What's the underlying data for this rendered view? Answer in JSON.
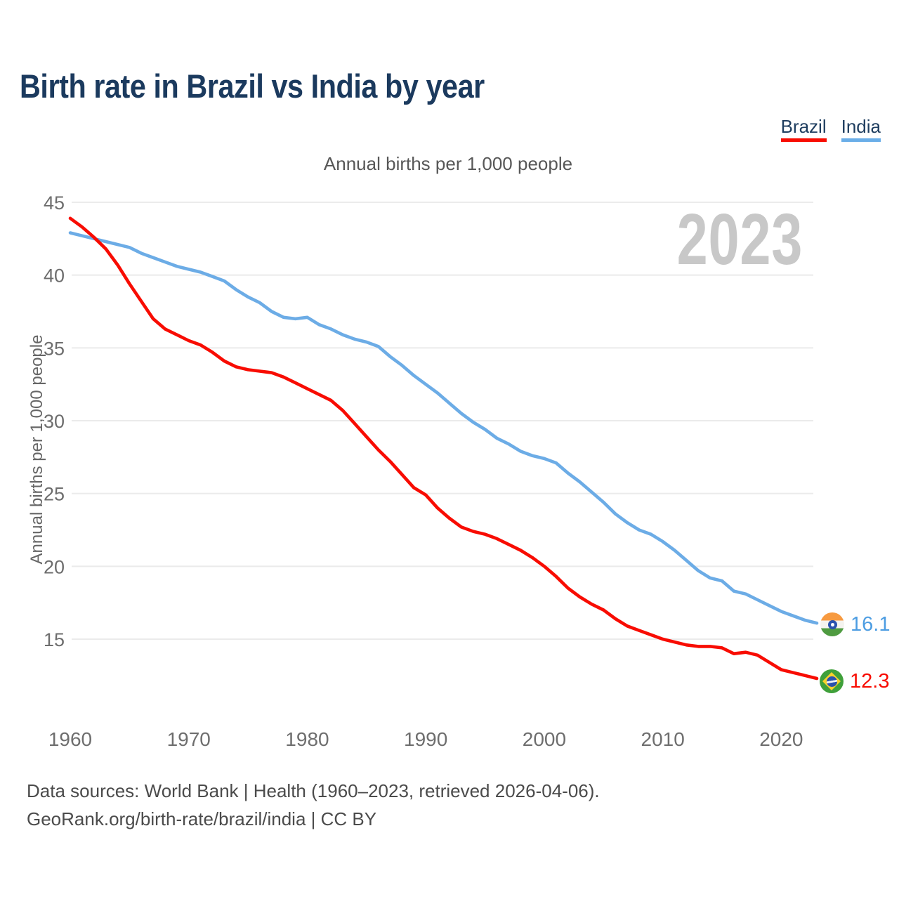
{
  "title": "Birth rate in Brazil vs India by year",
  "subtitle": "Annual births per 1,000 people",
  "y_axis_label": "Annual births per 1,000 people",
  "watermark": "2023",
  "legend": [
    {
      "label": "Brazil",
      "color": "#f80c02"
    },
    {
      "label": "India",
      "color": "#6aaee8"
    }
  ],
  "end_labels": {
    "india": {
      "value": "16.1",
      "color": "#4d9de2"
    },
    "brazil": {
      "value": "12.3",
      "color": "#f80c02"
    }
  },
  "footer": {
    "line1": "Data sources: World Bank | Health (1960–2023, retrieved 2026-04-06).",
    "line2": "GeoRank.org/birth-rate/brazil/india | CC BY"
  },
  "chart_data": {
    "type": "line",
    "title": "Birth rate in Brazil vs India by year",
    "subtitle": "Annual births per 1,000 people",
    "ylabel": "Annual births per 1,000 people",
    "ylim": [
      15,
      45
    ],
    "yticks": [
      15,
      20,
      25,
      30,
      35,
      40,
      45
    ],
    "xticks": [
      1960,
      1970,
      1980,
      1990,
      2000,
      2010,
      2020
    ],
    "grid": true,
    "legend_position": "top-right",
    "x": [
      1960,
      1961,
      1962,
      1963,
      1964,
      1965,
      1966,
      1967,
      1968,
      1969,
      1970,
      1971,
      1972,
      1973,
      1974,
      1975,
      1976,
      1977,
      1978,
      1979,
      1980,
      1981,
      1982,
      1983,
      1984,
      1985,
      1986,
      1987,
      1988,
      1989,
      1990,
      1991,
      1992,
      1993,
      1994,
      1995,
      1996,
      1997,
      1998,
      1999,
      2000,
      2001,
      2002,
      2003,
      2004,
      2005,
      2006,
      2007,
      2008,
      2009,
      2010,
      2011,
      2012,
      2013,
      2014,
      2015,
      2016,
      2017,
      2018,
      2019,
      2020,
      2021,
      2022,
      2023
    ],
    "series": [
      {
        "name": "Brazil",
        "color": "#f80c02",
        "values": [
          43.9,
          43.3,
          42.6,
          41.8,
          40.7,
          39.4,
          38.2,
          37.0,
          36.3,
          35.9,
          35.5,
          35.2,
          34.7,
          34.1,
          33.7,
          33.5,
          33.4,
          33.3,
          33.0,
          32.6,
          32.2,
          31.8,
          31.4,
          30.7,
          29.8,
          28.9,
          28.0,
          27.2,
          26.3,
          25.4,
          24.9,
          24.0,
          23.3,
          22.7,
          22.4,
          22.2,
          21.9,
          21.5,
          21.1,
          20.6,
          20.0,
          19.3,
          18.5,
          17.9,
          17.4,
          17.0,
          16.4,
          15.9,
          15.6,
          15.3,
          15.0,
          14.8,
          14.6,
          14.5,
          14.5,
          14.4,
          14.0,
          14.1,
          13.9,
          13.4,
          12.9,
          12.7,
          12.5,
          12.3
        ]
      },
      {
        "name": "India",
        "color": "#6cace6",
        "values": [
          42.9,
          42.7,
          42.5,
          42.3,
          42.1,
          41.9,
          41.5,
          41.2,
          40.9,
          40.6,
          40.4,
          40.2,
          39.9,
          39.6,
          39.0,
          38.5,
          38.1,
          37.5,
          37.1,
          37.0,
          37.1,
          36.6,
          36.3,
          35.9,
          35.6,
          35.4,
          35.1,
          34.4,
          33.8,
          33.1,
          32.5,
          31.9,
          31.2,
          30.5,
          29.9,
          29.4,
          28.8,
          28.4,
          27.9,
          27.6,
          27.4,
          27.1,
          26.4,
          25.8,
          25.1,
          24.4,
          23.6,
          23.0,
          22.5,
          22.2,
          21.7,
          21.1,
          20.4,
          19.7,
          19.2,
          19.0,
          18.3,
          18.1,
          17.7,
          17.3,
          16.9,
          16.6,
          16.3,
          16.1
        ]
      }
    ]
  }
}
